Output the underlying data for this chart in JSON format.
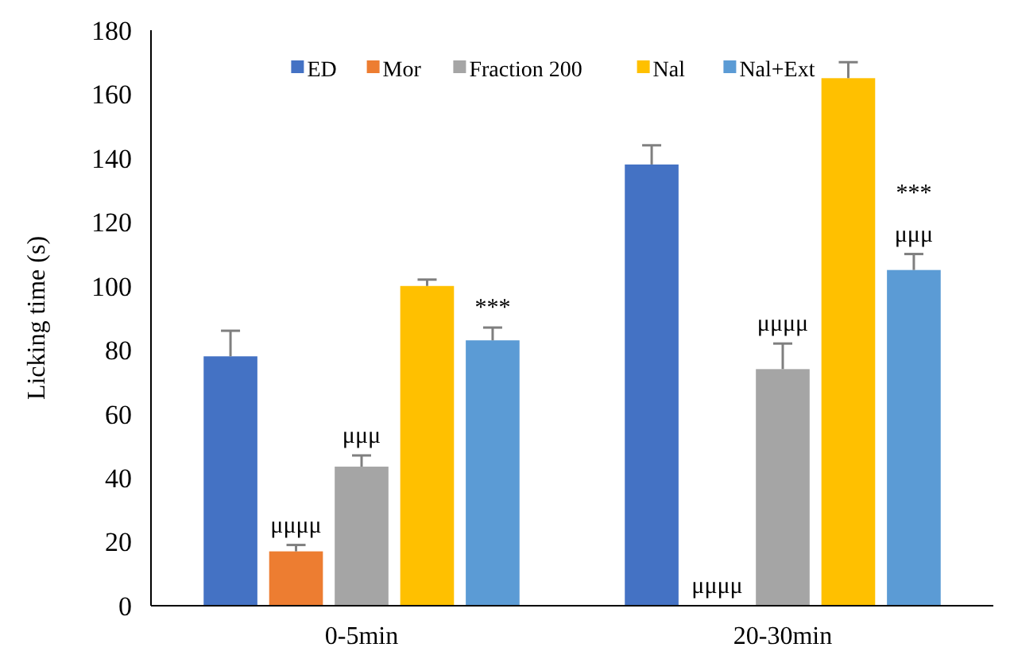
{
  "chart_data": {
    "type": "bar",
    "ylabel": "Licking time (s)",
    "categories": [
      "0-5min",
      "20-30min"
    ],
    "series": [
      {
        "name": "ED",
        "color": "#4472c4",
        "values": [
          78,
          138
        ],
        "errors": [
          8,
          6
        ]
      },
      {
        "name": "Mor",
        "color": "#ed7d31",
        "values": [
          17,
          0
        ],
        "errors": [
          2,
          null
        ]
      },
      {
        "name": "Fraction 200",
        "color": "#a5a5a5",
        "values": [
          43.5,
          74
        ],
        "errors": [
          3.5,
          8
        ]
      },
      {
        "name": "Nal",
        "color": "#ffc000",
        "values": [
          100,
          165
        ],
        "errors": [
          2,
          5
        ]
      },
      {
        "name": "Nal+Ext",
        "color": "#5b9bd5",
        "values": [
          83,
          105
        ],
        "errors": [
          4,
          5
        ]
      }
    ],
    "ylim": [
      0,
      180
    ],
    "yticks": [
      0,
      20,
      40,
      60,
      80,
      100,
      120,
      140,
      160,
      180
    ],
    "grid": false,
    "legend": "top",
    "annotations": [
      "μμμμ",
      "μμμ",
      "***",
      "μμμμ",
      "μμμμ",
      "μμμ",
      "***"
    ]
  }
}
